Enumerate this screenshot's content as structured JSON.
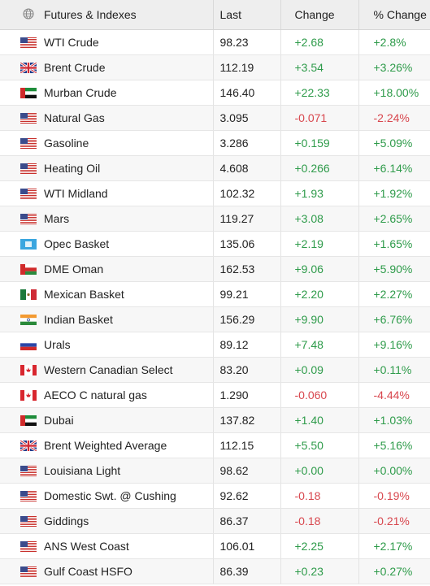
{
  "header": {
    "name": "Futures & Indexes",
    "last": "Last",
    "change": "Change",
    "pct": "% Change",
    "icon": "globe-icon"
  },
  "colors": {
    "up": "#2e9b4a",
    "down": "#d8474e"
  },
  "rows": [
    {
      "flag": "us",
      "name": "WTI Crude",
      "last": "98.23",
      "change": "+2.68",
      "pct": "+2.8%",
      "dir": "up"
    },
    {
      "flag": "gb",
      "name": "Brent Crude",
      "last": "112.19",
      "change": "+3.54",
      "pct": "+3.26%",
      "dir": "up"
    },
    {
      "flag": "ae",
      "name": "Murban Crude",
      "last": "146.40",
      "change": "+22.33",
      "pct": "+18.00%",
      "dir": "up"
    },
    {
      "flag": "us",
      "name": "Natural Gas",
      "last": "3.095",
      "change": "-0.071",
      "pct": "-2.24%",
      "dir": "down"
    },
    {
      "flag": "us",
      "name": "Gasoline",
      "last": "3.286",
      "change": "+0.159",
      "pct": "+5.09%",
      "dir": "up"
    },
    {
      "flag": "us",
      "name": "Heating Oil",
      "last": "4.608",
      "change": "+0.266",
      "pct": "+6.14%",
      "dir": "up"
    },
    {
      "flag": "us",
      "name": "WTI Midland",
      "last": "102.32",
      "change": "+1.93",
      "pct": "+1.92%",
      "dir": "up"
    },
    {
      "flag": "us",
      "name": "Mars",
      "last": "119.27",
      "change": "+3.08",
      "pct": "+2.65%",
      "dir": "up"
    },
    {
      "flag": "opec",
      "name": "Opec Basket",
      "last": "135.06",
      "change": "+2.19",
      "pct": "+1.65%",
      "dir": "up"
    },
    {
      "flag": "om",
      "name": "DME Oman",
      "last": "162.53",
      "change": "+9.06",
      "pct": "+5.90%",
      "dir": "up"
    },
    {
      "flag": "mx",
      "name": "Mexican Basket",
      "last": "99.21",
      "change": "+2.20",
      "pct": "+2.27%",
      "dir": "up"
    },
    {
      "flag": "in",
      "name": "Indian Basket",
      "last": "156.29",
      "change": "+9.90",
      "pct": "+6.76%",
      "dir": "up"
    },
    {
      "flag": "ru",
      "name": "Urals",
      "last": "89.12",
      "change": "+7.48",
      "pct": "+9.16%",
      "dir": "up"
    },
    {
      "flag": "ca",
      "name": "Western Canadian Select",
      "last": "83.20",
      "change": "+0.09",
      "pct": "+0.11%",
      "dir": "up"
    },
    {
      "flag": "ca",
      "name": "AECO C natural gas",
      "last": "1.290",
      "change": "-0.060",
      "pct": "-4.44%",
      "dir": "down"
    },
    {
      "flag": "ae",
      "name": "Dubai",
      "last": "137.82",
      "change": "+1.40",
      "pct": "+1.03%",
      "dir": "up"
    },
    {
      "flag": "gb",
      "name": "Brent Weighted Average",
      "last": "112.15",
      "change": "+5.50",
      "pct": "+5.16%",
      "dir": "up"
    },
    {
      "flag": "us",
      "name": "Louisiana Light",
      "last": "98.62",
      "change": "+0.00",
      "pct": "+0.00%",
      "dir": "up"
    },
    {
      "flag": "us",
      "name": "Domestic Swt. @ Cushing",
      "last": "92.62",
      "change": "-0.18",
      "pct": "-0.19%",
      "dir": "down"
    },
    {
      "flag": "us",
      "name": "Giddings",
      "last": "86.37",
      "change": "-0.18",
      "pct": "-0.21%",
      "dir": "down"
    },
    {
      "flag": "us",
      "name": "ANS West Coast",
      "last": "106.01",
      "change": "+2.25",
      "pct": "+2.17%",
      "dir": "up"
    },
    {
      "flag": "us",
      "name": "Gulf Coast HSFO",
      "last": "86.39",
      "change": "+0.23",
      "pct": "+0.27%",
      "dir": "up"
    }
  ]
}
